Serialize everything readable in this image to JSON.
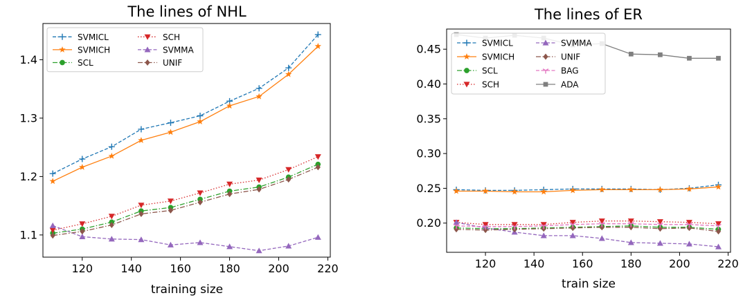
{
  "chart_data": [
    {
      "type": "line",
      "title": "The lines of NHL",
      "xlabel": "training size",
      "ylabel": "",
      "xlim": [
        104,
        221
      ],
      "ylim": [
        1.062,
        1.462
      ],
      "xticks": [
        120,
        140,
        160,
        180,
        200,
        220
      ],
      "yticks": [
        1.1,
        1.2,
        1.3,
        1.4
      ],
      "ytick_labels": [
        "1.1",
        "1.2",
        "1.3",
        "1.4"
      ],
      "grid": false,
      "legend": {
        "position": "top-left",
        "columns": 2
      },
      "x": [
        108,
        120,
        132,
        144,
        156,
        168,
        180,
        192,
        204,
        216
      ],
      "series": [
        {
          "name": "SVMICL",
          "color": "#1f77b4",
          "dash": "dashed",
          "marker": "plus",
          "values": [
            1.205,
            1.23,
            1.251,
            1.281,
            1.292,
            1.304,
            1.329,
            1.351,
            1.386,
            1.443
          ]
        },
        {
          "name": "SVMICH",
          "color": "#ff7f0e",
          "dash": "solid",
          "marker": "star",
          "values": [
            1.192,
            1.216,
            1.235,
            1.262,
            1.276,
            1.294,
            1.321,
            1.337,
            1.375,
            1.423
          ]
        },
        {
          "name": "SCL",
          "color": "#2ca02c",
          "dash": "dashdot",
          "marker": "circle",
          "values": [
            1.103,
            1.11,
            1.122,
            1.141,
            1.147,
            1.161,
            1.175,
            1.182,
            1.199,
            1.221
          ]
        },
        {
          "name": "SCH",
          "color": "#d62728",
          "dash": "dotted",
          "marker": "triangle-down",
          "values": [
            1.108,
            1.119,
            1.132,
            1.151,
            1.158,
            1.172,
            1.187,
            1.194,
            1.212,
            1.234
          ]
        },
        {
          "name": "SVMMA",
          "color": "#9467bd",
          "dash": "dashed",
          "marker": "triangle-up",
          "values": [
            1.116,
            1.097,
            1.093,
            1.092,
            1.083,
            1.087,
            1.08,
            1.073,
            1.081,
            1.096
          ]
        },
        {
          "name": "UNIF",
          "color": "#8c564b",
          "dash": "dashdot",
          "marker": "diamond",
          "values": [
            1.099,
            1.106,
            1.117,
            1.136,
            1.142,
            1.156,
            1.17,
            1.178,
            1.195,
            1.216
          ]
        }
      ]
    },
    {
      "type": "line",
      "title": "The lines of ER",
      "xlabel": "train size",
      "ylabel": "",
      "xlim": [
        104,
        221
      ],
      "ylim": [
        0.158,
        0.479
      ],
      "xticks": [
        120,
        140,
        160,
        180,
        200,
        220
      ],
      "yticks": [
        0.2,
        0.25,
        0.3,
        0.35,
        0.4,
        0.45
      ],
      "ytick_labels": [
        "0.20",
        "0.25",
        "0.30",
        "0.35",
        "0.40",
        "0.45"
      ],
      "grid": false,
      "legend": {
        "position": "top-left",
        "columns": 2
      },
      "x": [
        108,
        120,
        132,
        144,
        156,
        168,
        180,
        192,
        204,
        216
      ],
      "series": [
        {
          "name": "SVMICL",
          "color": "#1f77b4",
          "dash": "dashed",
          "marker": "plus",
          "values": [
            0.248,
            0.247,
            0.247,
            0.248,
            0.249,
            0.249,
            0.249,
            0.248,
            0.25,
            0.255
          ]
        },
        {
          "name": "SVMICH",
          "color": "#ff7f0e",
          "dash": "solid",
          "marker": "star",
          "values": [
            0.246,
            0.246,
            0.245,
            0.245,
            0.247,
            0.248,
            0.248,
            0.248,
            0.249,
            0.252
          ]
        },
        {
          "name": "SCL",
          "color": "#2ca02c",
          "dash": "dashdot",
          "marker": "circle",
          "values": [
            0.193,
            0.192,
            0.192,
            0.193,
            0.194,
            0.195,
            0.196,
            0.194,
            0.194,
            0.191
          ]
        },
        {
          "name": "SCH",
          "color": "#d62728",
          "dash": "dotted",
          "marker": "triangle-down",
          "values": [
            0.201,
            0.198,
            0.198,
            0.198,
            0.201,
            0.203,
            0.203,
            0.202,
            0.201,
            0.199
          ]
        },
        {
          "name": "SVMMA",
          "color": "#9467bd",
          "dash": "dashed",
          "marker": "triangle-up",
          "values": [
            0.201,
            0.193,
            0.187,
            0.182,
            0.182,
            0.178,
            0.172,
            0.171,
            0.17,
            0.166
          ]
        },
        {
          "name": "UNIF",
          "color": "#8c564b",
          "dash": "dashdot",
          "marker": "diamond",
          "values": [
            0.191,
            0.19,
            0.191,
            0.192,
            0.193,
            0.194,
            0.194,
            0.192,
            0.193,
            0.188
          ]
        },
        {
          "name": "BAG",
          "color": "#e377c2",
          "dash": "dashed",
          "marker": "tri-down",
          "values": [
            0.196,
            0.195,
            0.195,
            0.196,
            0.198,
            0.199,
            0.199,
            0.198,
            0.198,
            0.196
          ]
        },
        {
          "name": "ADA",
          "color": "#7f7f7f",
          "dash": "solid",
          "marker": "square",
          "values": [
            0.471,
            0.466,
            0.47,
            0.466,
            0.456,
            0.458,
            0.443,
            0.442,
            0.437,
            0.437
          ]
        }
      ]
    }
  ]
}
